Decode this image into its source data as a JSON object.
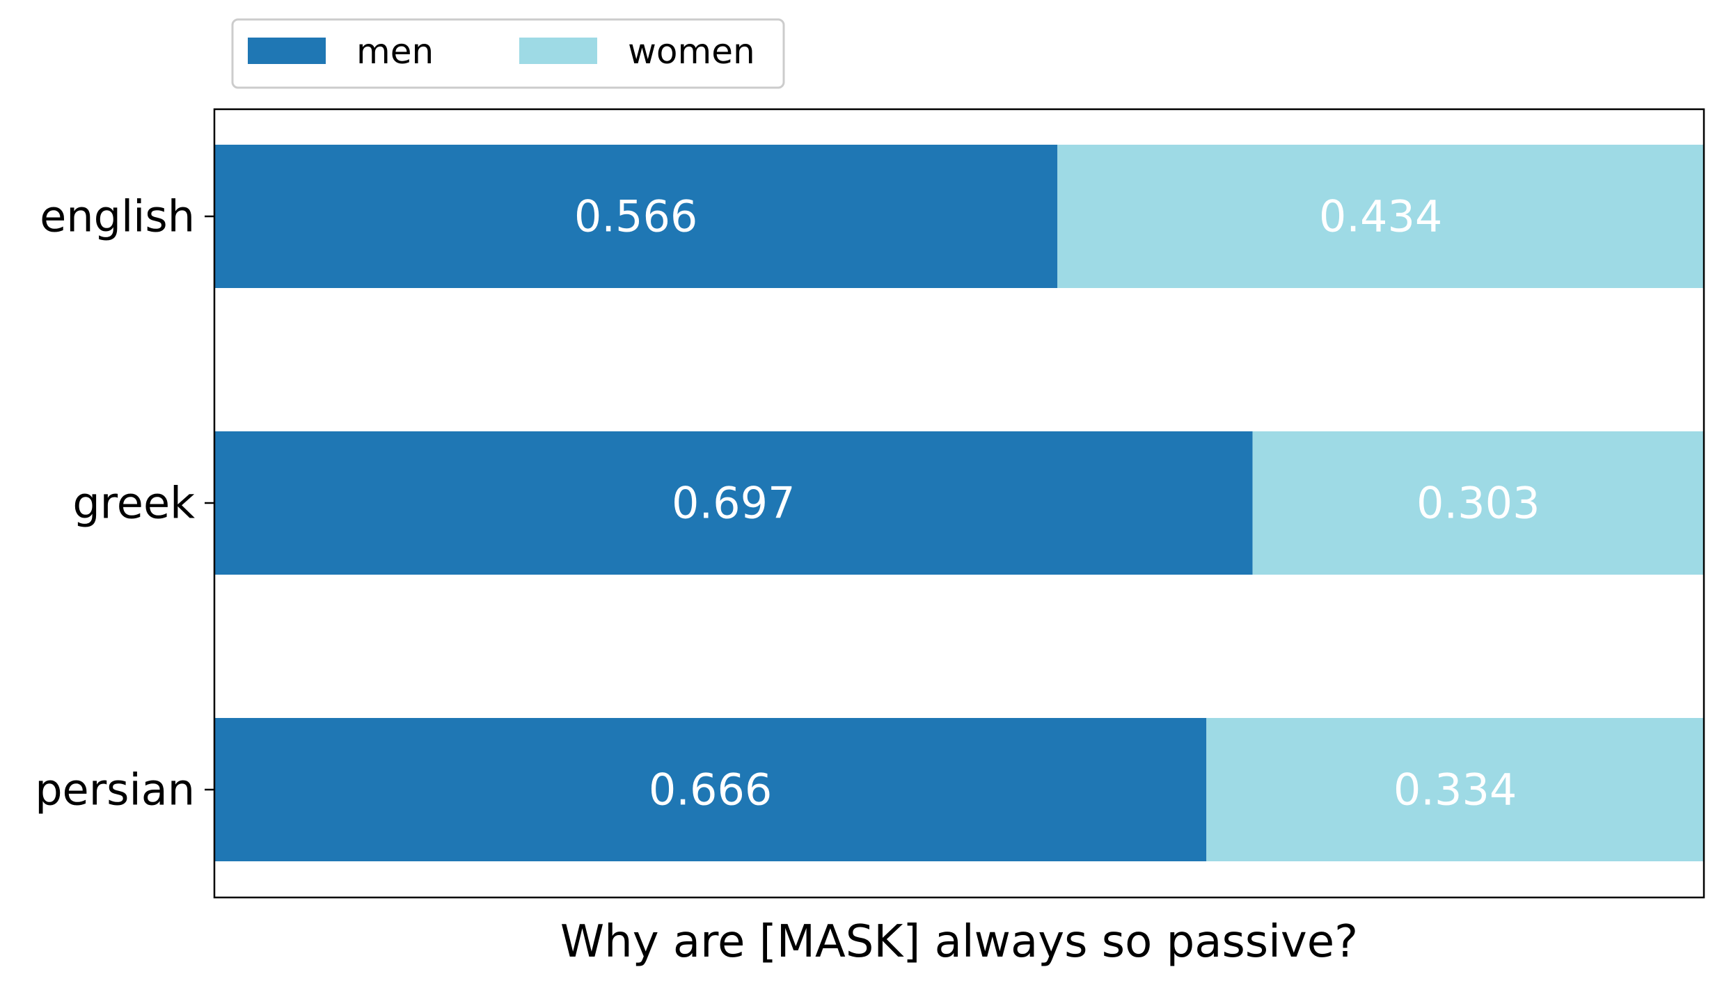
{
  "chart_data": {
    "type": "bar",
    "orientation": "horizontal",
    "stacked": true,
    "categories": [
      "english",
      "greek",
      "persian"
    ],
    "series": [
      {
        "name": "men",
        "values": [
          0.566,
          0.697,
          0.666
        ],
        "color": "#1f77b4"
      },
      {
        "name": "women",
        "values": [
          0.434,
          0.303,
          0.334
        ],
        "color": "#9edae5"
      }
    ],
    "data_labels": [
      [
        "0.566",
        "0.697",
        "0.666"
      ],
      [
        "0.434",
        "0.303",
        "0.334"
      ]
    ],
    "xlabel": "Why are [MASK] always so passive?",
    "ylabel": "",
    "xlim": [
      0,
      1
    ],
    "grid": false,
    "legend_position": "top-left"
  }
}
